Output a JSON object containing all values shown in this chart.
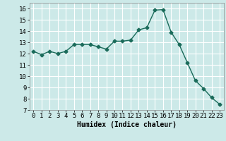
{
  "x": [
    0,
    1,
    2,
    3,
    4,
    5,
    6,
    7,
    8,
    9,
    10,
    11,
    12,
    13,
    14,
    15,
    16,
    17,
    18,
    19,
    20,
    21,
    22,
    23
  ],
  "y": [
    12.2,
    11.9,
    12.2,
    12.0,
    12.2,
    12.8,
    12.8,
    12.8,
    12.6,
    12.4,
    13.1,
    13.1,
    13.2,
    14.1,
    14.3,
    15.85,
    15.9,
    13.9,
    12.8,
    11.2,
    9.6,
    8.9,
    8.1,
    7.5
  ],
  "line_color": "#1a6b5a",
  "marker": "D",
  "marker_size": 2.5,
  "bg_color": "#cce9e8",
  "grid_color": "#ffffff",
  "xlabel": "Humidex (Indice chaleur)",
  "ylim": [
    7,
    16.5
  ],
  "yticks": [
    7,
    8,
    9,
    10,
    11,
    12,
    13,
    14,
    15,
    16
  ],
  "xticks": [
    0,
    1,
    2,
    3,
    4,
    5,
    6,
    7,
    8,
    9,
    10,
    11,
    12,
    13,
    14,
    15,
    16,
    17,
    18,
    19,
    20,
    21,
    22,
    23
  ],
  "xlabel_fontsize": 7,
  "tick_fontsize": 6.5,
  "line_width": 1.0
}
